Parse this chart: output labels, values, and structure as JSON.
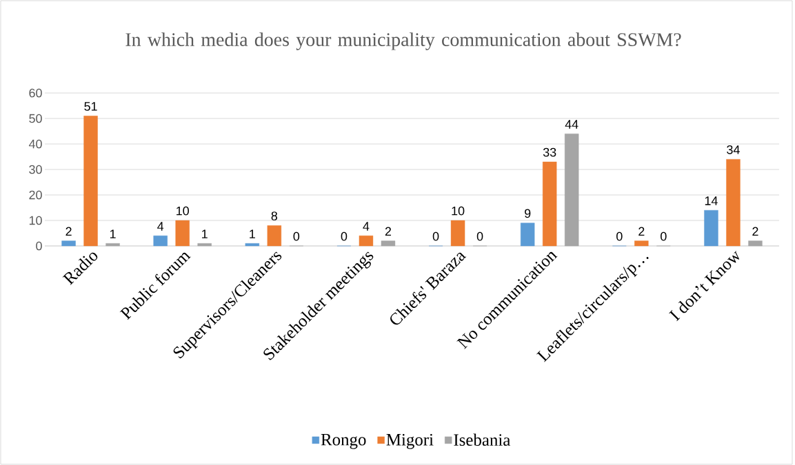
{
  "chart_data": {
    "type": "bar",
    "title": "In which media does your municipality communication about SSWM?",
    "categories": [
      "Radio",
      "Public forum",
      "Supervisors/Cleaners",
      "Stakeholder meetings",
      "Chiefs' Baraza",
      "No communication",
      "Leaflets/circulars/p…",
      "I don’t Know"
    ],
    "series": [
      {
        "name": "Rongo",
        "color": "#5b9bd5",
        "values": [
          2,
          4,
          1,
          0,
          0,
          9,
          0,
          14
        ]
      },
      {
        "name": "Migori",
        "color": "#ed7d31",
        "values": [
          51,
          10,
          8,
          4,
          10,
          33,
          2,
          34
        ]
      },
      {
        "name": "Isebania",
        "color": "#a5a5a5",
        "values": [
          1,
          1,
          0,
          2,
          0,
          44,
          0,
          2
        ]
      }
    ],
    "ylim": [
      0,
      60
    ],
    "yticks": [
      0,
      10,
      20,
      30,
      40,
      50,
      60
    ],
    "grid": "y",
    "legend": "bottom",
    "data_labels": true
  }
}
